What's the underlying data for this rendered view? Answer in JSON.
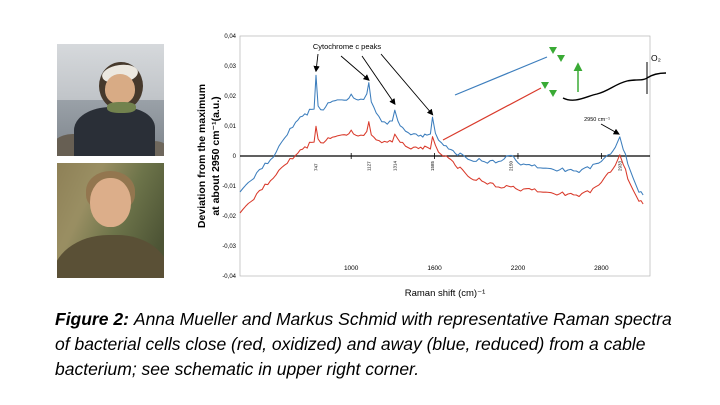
{
  "figure": {
    "caption_label": "Figure 2:",
    "caption_text": "Anna Mueller and Markus Schmid with representative Raman spectra of bacterial cells close (red, oxidized) and away (blue, reduced) from a cable bacterium; see schematic in upper right corner."
  },
  "chart_data": {
    "type": "line",
    "title": "",
    "xlabel": "Raman shift (cm)⁻¹",
    "ylabel_line1": "Deviation from the maximum",
    "ylabel_line2": "at about 2950 cm⁻¹(a.u.)",
    "xlim": [
      200,
      3150
    ],
    "ylim": [
      -0.04,
      0.04
    ],
    "x_ticks": [
      1000,
      1600,
      2200,
      2800
    ],
    "y_ticks": [
      0.04,
      0.03,
      0.02,
      0.01,
      0,
      -0.01,
      -0.02,
      -0.03,
      -0.04
    ],
    "y_tick_labels": [
      "0,04",
      "0,03",
      "0,02",
      "0,01",
      "0",
      "-0,01",
      "-0,02",
      "-0,03",
      "-0,04"
    ],
    "grid": false,
    "legend": "none",
    "noise_amplitude": 0.0007,
    "colors": {
      "blue": "#3d7ebd",
      "red": "#d93a2b",
      "green": "#3aaa35",
      "axis": "#000000"
    },
    "annotations": {
      "cytochrome_label": "Cytochrome c peaks",
      "cytochrome_peaks": [
        {
          "x": 747,
          "y": 0.027
        },
        {
          "x": 1127,
          "y": 0.024
        },
        {
          "x": 1314,
          "y": 0.016
        },
        {
          "x": 1585,
          "y": 0.0125
        }
      ],
      "peak_2950": {
        "x": 2933,
        "y": 0.006,
        "label": "2950 cm⁻¹"
      },
      "o2_label": "O₂",
      "peak_axis_labels": [
        {
          "x": 747,
          "label": "747"
        },
        {
          "x": 1127,
          "label": "1127"
        },
        {
          "x": 1314,
          "label": "1314"
        },
        {
          "x": 1585,
          "label": "1585"
        },
        {
          "x": 2150,
          "label": "2150"
        },
        {
          "x": 2933,
          "label": "2933"
        }
      ]
    },
    "series": [
      {
        "id": "red",
        "name": "close to cable bacterium (red, oxidized)",
        "color": "#d93a2b",
        "points": [
          [
            200,
            -0.019
          ],
          [
            280,
            -0.015
          ],
          [
            360,
            -0.011
          ],
          [
            440,
            -0.007
          ],
          [
            520,
            -0.003
          ],
          [
            600,
            0
          ],
          [
            650,
            0.002
          ],
          [
            700,
            0.004
          ],
          [
            733,
            0.005
          ],
          [
            747,
            0.01
          ],
          [
            762,
            0.005
          ],
          [
            800,
            0.005
          ],
          [
            850,
            0.006
          ],
          [
            900,
            0.007
          ],
          [
            950,
            0.007
          ],
          [
            1000,
            0.008
          ],
          [
            1050,
            0.007
          ],
          [
            1090,
            0.007
          ],
          [
            1112,
            0.0075
          ],
          [
            1127,
            0.011
          ],
          [
            1145,
            0.007
          ],
          [
            1180,
            0.006
          ],
          [
            1220,
            0.005
          ],
          [
            1260,
            0.005
          ],
          [
            1296,
            0.005
          ],
          [
            1314,
            0.008
          ],
          [
            1336,
            0.005
          ],
          [
            1370,
            0.004
          ],
          [
            1410,
            0.003
          ],
          [
            1450,
            0.003
          ],
          [
            1500,
            0.003
          ],
          [
            1545,
            0.003
          ],
          [
            1570,
            0.003
          ],
          [
            1585,
            0.006
          ],
          [
            1606,
            0.003
          ],
          [
            1650,
            0.001
          ],
          [
            1700,
            -0.001
          ],
          [
            1750,
            -0.003
          ],
          [
            1800,
            -0.005
          ],
          [
            1860,
            -0.007
          ],
          [
            1920,
            -0.008
          ],
          [
            1980,
            -0.009
          ],
          [
            2040,
            -0.01
          ],
          [
            2100,
            -0.0105
          ],
          [
            2150,
            -0.01
          ],
          [
            2200,
            -0.011
          ],
          [
            2260,
            -0.011
          ],
          [
            2320,
            -0.0115
          ],
          [
            2380,
            -0.012
          ],
          [
            2440,
            -0.012
          ],
          [
            2500,
            -0.0125
          ],
          [
            2560,
            -0.013
          ],
          [
            2620,
            -0.013
          ],
          [
            2680,
            -0.0125
          ],
          [
            2740,
            -0.0115
          ],
          [
            2800,
            -0.009
          ],
          [
            2850,
            -0.006
          ],
          [
            2900,
            -0.003
          ],
          [
            2933,
            0
          ],
          [
            2958,
            -0.003
          ],
          [
            2990,
            -0.007
          ],
          [
            3030,
            -0.011
          ],
          [
            3070,
            -0.015
          ],
          [
            3100,
            -0.016
          ]
        ]
      },
      {
        "id": "blue",
        "name": "away from cable bacterium (blue, reduced)",
        "color": "#3d7ebd",
        "points": [
          [
            200,
            -0.012
          ],
          [
            280,
            -0.008
          ],
          [
            360,
            -0.004
          ],
          [
            440,
            0
          ],
          [
            520,
            0.006
          ],
          [
            600,
            0.011
          ],
          [
            650,
            0.013
          ],
          [
            700,
            0.015
          ],
          [
            733,
            0.016
          ],
          [
            747,
            0.027
          ],
          [
            762,
            0.016
          ],
          [
            800,
            0.016
          ],
          [
            850,
            0.018
          ],
          [
            900,
            0.019
          ],
          [
            950,
            0.0185
          ],
          [
            1000,
            0.02
          ],
          [
            1050,
            0.019
          ],
          [
            1090,
            0.019
          ],
          [
            1112,
            0.02
          ],
          [
            1127,
            0.024
          ],
          [
            1145,
            0.018
          ],
          [
            1180,
            0.015
          ],
          [
            1220,
            0.012
          ],
          [
            1260,
            0.011
          ],
          [
            1296,
            0.012
          ],
          [
            1314,
            0.016
          ],
          [
            1336,
            0.011
          ],
          [
            1370,
            0.009
          ],
          [
            1410,
            0.008
          ],
          [
            1450,
            0.0075
          ],
          [
            1500,
            0.007
          ],
          [
            1545,
            0.007
          ],
          [
            1570,
            0.008
          ],
          [
            1585,
            0.0125
          ],
          [
            1606,
            0.007
          ],
          [
            1650,
            0.005
          ],
          [
            1700,
            0.002
          ],
          [
            1750,
            0.001
          ],
          [
            1800,
            0
          ],
          [
            1860,
            -0.001
          ],
          [
            1920,
            -0.0015
          ],
          [
            1980,
            -0.002
          ],
          [
            2040,
            -0.002
          ],
          [
            2100,
            -0.001
          ],
          [
            2150,
            0.0005
          ],
          [
            2200,
            -0.002
          ],
          [
            2260,
            -0.003
          ],
          [
            2320,
            -0.0035
          ],
          [
            2380,
            -0.004
          ],
          [
            2440,
            -0.004
          ],
          [
            2500,
            -0.0045
          ],
          [
            2560,
            -0.005
          ],
          [
            2620,
            -0.005
          ],
          [
            2680,
            -0.0045
          ],
          [
            2740,
            -0.0035
          ],
          [
            2800,
            -0.002
          ],
          [
            2850,
            0
          ],
          [
            2900,
            0.003
          ],
          [
            2933,
            0.006
          ],
          [
            2958,
            0.002
          ],
          [
            2990,
            -0.002
          ],
          [
            3030,
            -0.007
          ],
          [
            3070,
            -0.012
          ],
          [
            3100,
            -0.013
          ]
        ]
      }
    ]
  }
}
